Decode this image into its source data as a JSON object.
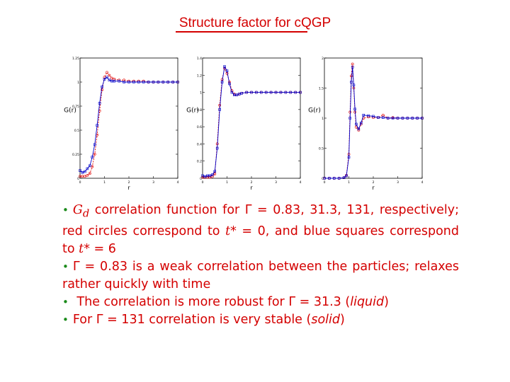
{
  "title": "Structure factor for cQGP",
  "colors": {
    "title": "#d40000",
    "text": "#d40000",
    "bullet": "#1a8a1a",
    "red_series": "#e00000",
    "blue_series": "#0000c8",
    "axis": "#000000"
  },
  "chart_data": [
    {
      "type": "scatter",
      "ylabel": "G(r)",
      "xlabel": "r",
      "xlim": [
        0,
        4
      ],
      "ylim": [
        0,
        1.25
      ],
      "yticks": [
        "0",
        "0.25",
        "0.5",
        "0.75",
        "1",
        "1.25"
      ],
      "xticks": [
        "0",
        "1",
        "2",
        "3",
        "4"
      ],
      "series": [
        {
          "color": "red",
          "x": [
            0.0,
            0.1,
            0.2,
            0.3,
            0.4,
            0.5,
            0.6,
            0.7,
            0.8,
            0.9,
            1.0,
            1.1,
            1.2,
            1.3,
            1.4,
            1.6,
            1.8,
            2.0,
            2.2,
            2.4,
            2.6,
            2.8,
            3.0,
            3.2,
            3.4,
            3.6,
            3.8,
            4.0
          ],
          "y": [
            0.02,
            0.02,
            0.02,
            0.03,
            0.05,
            0.12,
            0.25,
            0.45,
            0.7,
            0.92,
            1.05,
            1.1,
            1.07,
            1.04,
            1.03,
            1.02,
            1.02,
            1.01,
            1.01,
            1.01,
            1.01,
            1.0,
            1.0,
            1.0,
            1.0,
            1.0,
            1.0,
            1.0
          ]
        },
        {
          "color": "blue",
          "x": [
            0.0,
            0.1,
            0.2,
            0.3,
            0.4,
            0.5,
            0.6,
            0.7,
            0.8,
            0.9,
            1.0,
            1.1,
            1.2,
            1.3,
            1.4,
            1.6,
            1.8,
            2.0,
            2.2,
            2.4,
            2.6,
            2.8,
            3.0,
            3.2,
            3.4,
            3.6,
            3.8,
            4.0
          ],
          "y": [
            0.08,
            0.06,
            0.07,
            0.1,
            0.13,
            0.22,
            0.35,
            0.55,
            0.78,
            0.95,
            1.03,
            1.05,
            1.02,
            1.01,
            1.01,
            1.01,
            1.0,
            1.0,
            1.0,
            1.0,
            1.0,
            1.0,
            1.0,
            1.0,
            1.0,
            1.0,
            1.0,
            1.0
          ]
        }
      ]
    },
    {
      "type": "scatter",
      "ylabel": "G(r)",
      "xlabel": "r",
      "xlim": [
        0,
        4
      ],
      "ylim": [
        0,
        1.4
      ],
      "yticks": [
        "0",
        "0.2",
        "0.4",
        "0.6",
        "0.8",
        "1",
        "1.2",
        "1.4"
      ],
      "xticks": [
        "0",
        "1",
        "2",
        "3",
        "4"
      ],
      "series": [
        {
          "color": "red",
          "x": [
            0.0,
            0.1,
            0.2,
            0.3,
            0.4,
            0.5,
            0.6,
            0.7,
            0.8,
            0.9,
            1.0,
            1.1,
            1.2,
            1.3,
            1.4,
            1.5,
            1.6,
            1.8,
            2.0,
            2.2,
            2.4,
            2.6,
            2.8,
            3.0,
            3.2,
            3.4,
            3.6,
            3.8,
            4.0
          ],
          "y": [
            0.01,
            0.01,
            0.01,
            0.01,
            0.02,
            0.05,
            0.4,
            0.85,
            1.15,
            1.28,
            1.22,
            1.12,
            1.02,
            0.98,
            0.97,
            0.98,
            0.99,
            1.0,
            1.0,
            1.0,
            1.0,
            1.0,
            1.0,
            1.0,
            1.0,
            1.0,
            1.0,
            1.0,
            1.0
          ]
        },
        {
          "color": "blue",
          "x": [
            0.0,
            0.1,
            0.2,
            0.3,
            0.4,
            0.5,
            0.6,
            0.7,
            0.8,
            0.9,
            1.0,
            1.1,
            1.2,
            1.3,
            1.4,
            1.5,
            1.6,
            1.8,
            2.0,
            2.2,
            2.4,
            2.6,
            2.8,
            3.0,
            3.2,
            3.4,
            3.6,
            3.8,
            4.0
          ],
          "y": [
            0.03,
            0.02,
            0.03,
            0.03,
            0.04,
            0.08,
            0.35,
            0.8,
            1.12,
            1.3,
            1.25,
            1.1,
            1.0,
            0.97,
            0.97,
            0.98,
            0.99,
            1.0,
            1.0,
            1.0,
            1.0,
            1.0,
            1.0,
            1.0,
            1.0,
            1.0,
            1.0,
            1.0,
            1.0
          ]
        }
      ]
    },
    {
      "type": "scatter",
      "ylabel": "G(r)",
      "xlabel": "r",
      "xlim": [
        0,
        4
      ],
      "ylim": [
        0,
        2.0
      ],
      "yticks": [
        "0",
        "0.5",
        "1",
        "1.5",
        "2"
      ],
      "xticks": [
        "0",
        "1",
        "2",
        "3",
        "4"
      ],
      "series": [
        {
          "color": "red",
          "x": [
            0.0,
            0.2,
            0.4,
            0.6,
            0.8,
            0.9,
            1.0,
            1.05,
            1.1,
            1.15,
            1.2,
            1.25,
            1.3,
            1.4,
            1.5,
            1.6,
            1.8,
            2.0,
            2.2,
            2.4,
            2.6,
            2.8,
            3.0,
            3.2,
            3.4,
            3.6,
            3.8,
            4.0
          ],
          "y": [
            0.0,
            0.0,
            0.0,
            0.0,
            0.01,
            0.05,
            0.4,
            1.1,
            1.7,
            1.9,
            1.5,
            1.1,
            0.85,
            0.8,
            0.9,
            1.0,
            1.02,
            1.01,
            1.01,
            1.05,
            1.0,
            1.01,
            1.0,
            1.0,
            1.0,
            1.0,
            1.0,
            1.0
          ]
        },
        {
          "color": "blue",
          "x": [
            0.0,
            0.2,
            0.4,
            0.6,
            0.8,
            0.9,
            1.0,
            1.05,
            1.1,
            1.15,
            1.2,
            1.25,
            1.3,
            1.4,
            1.5,
            1.6,
            1.8,
            2.0,
            2.2,
            2.4,
            2.6,
            2.8,
            3.0,
            3.2,
            3.4,
            3.6,
            3.8,
            4.0
          ],
          "y": [
            0.0,
            0.0,
            0.0,
            0.0,
            0.01,
            0.04,
            0.35,
            1.0,
            1.6,
            1.85,
            1.55,
            1.15,
            0.9,
            0.82,
            0.92,
            1.05,
            1.04,
            1.03,
            1.01,
            1.01,
            1.0,
            1.0,
            1.0,
            1.0,
            1.0,
            1.0,
            1.0,
            1.0
          ]
        }
      ]
    }
  ],
  "text": {
    "b1_sym": "G",
    "b1_sub": "d",
    "b1_a": " correlation function for Γ = 0.83, 31.3, 131, respectively; red circles correspond to ",
    "b1_t1": "t",
    "b1_b": "* = 0, and blue squares correspond to ",
    "b1_t2": "t",
    "b1_c": "* = 6",
    "b2": "Γ = 0.83 is a weak correlation between the particles; relaxes rather quickly with time",
    "b3_a": " The correlation is more robust for Γ = 31.3 (",
    "b3_i": "liquid",
    "b3_b": ")",
    "b4_a": "For Γ = 131 correlation is very stable (",
    "b4_i": "solid",
    "b4_b": ")",
    "bullet": "•"
  }
}
